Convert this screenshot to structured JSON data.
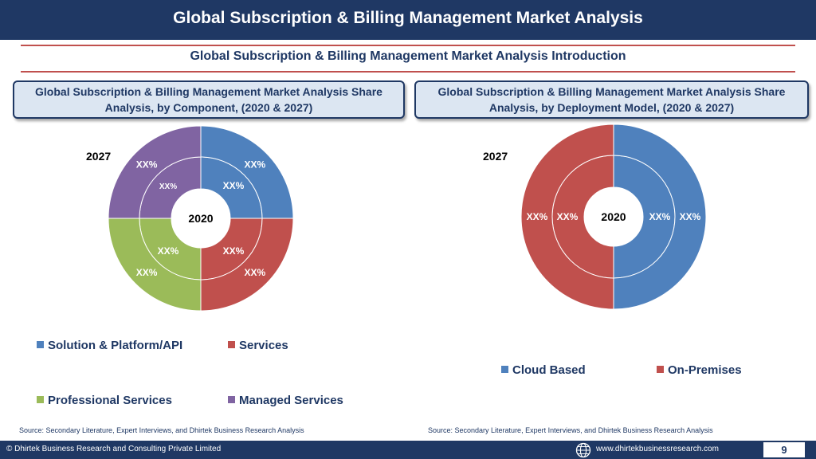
{
  "header": {
    "title": "Global Subscription & Billing Management Market Analysis",
    "subtitle": "Global Subscription & Billing Management Market Analysis  Introduction"
  },
  "panels": [
    {
      "heading": "Global Subscription & Billing Management Market Analysis  Share Analysis, by Component, (2020 & 2027)",
      "outer_year": "2027",
      "inner_year": "2020",
      "source": "Source: Secondary Literature, Expert Interviews, and Dhirtek Business Research Analysis"
    },
    {
      "heading": "Global Subscription & Billing Management Market Analysis  Share Analysis, by Deployment Model, (2020 & 2027)",
      "outer_year": "2027",
      "inner_year": "2020",
      "source": "Source: Secondary Literature, Expert Interviews, and Dhirtek Business Research Analysis"
    }
  ],
  "chart_data": [
    {
      "type": "pie",
      "variant": "donut-two-ring",
      "rings": [
        "2020",
        "2027"
      ],
      "categories": [
        "Solution & Platform/API",
        "Services",
        "Professional Services",
        "Managed Services"
      ],
      "colors": [
        "#4f81bd",
        "#c0504d",
        "#9bbb59",
        "#8064a2"
      ],
      "values_2020": [
        25,
        25,
        25,
        25
      ],
      "values_2027": [
        25,
        25,
        25,
        25
      ],
      "labels_2020": [
        "XX%",
        "XX%",
        "XX%",
        "XX%"
      ],
      "labels_2027": [
        "XX%",
        "XX%",
        "XX%",
        "XX%"
      ],
      "legend": [
        "Solution & Platform/API",
        "Services",
        "Professional Services",
        "Managed Services"
      ],
      "legend_position": "bottom"
    },
    {
      "type": "pie",
      "variant": "donut-two-ring",
      "rings": [
        "2020",
        "2027"
      ],
      "categories": [
        "Cloud Based",
        "On-Premises"
      ],
      "colors": [
        "#4f81bd",
        "#c0504d"
      ],
      "values_2020": [
        50,
        50
      ],
      "values_2027": [
        50,
        50
      ],
      "labels_2020": [
        "XX%",
        "XX%"
      ],
      "labels_2027": [
        "XX%",
        "XX%"
      ],
      "legend": [
        "Cloud Based",
        "On-Premises"
      ],
      "legend_position": "bottom"
    }
  ],
  "footer": {
    "copyright": "© Dhirtek Business Research and Consulting Private Limited",
    "website": "www.dhirtekbusinessresearch.com",
    "page_number": "9",
    "globe_icon": "globe-icon"
  }
}
